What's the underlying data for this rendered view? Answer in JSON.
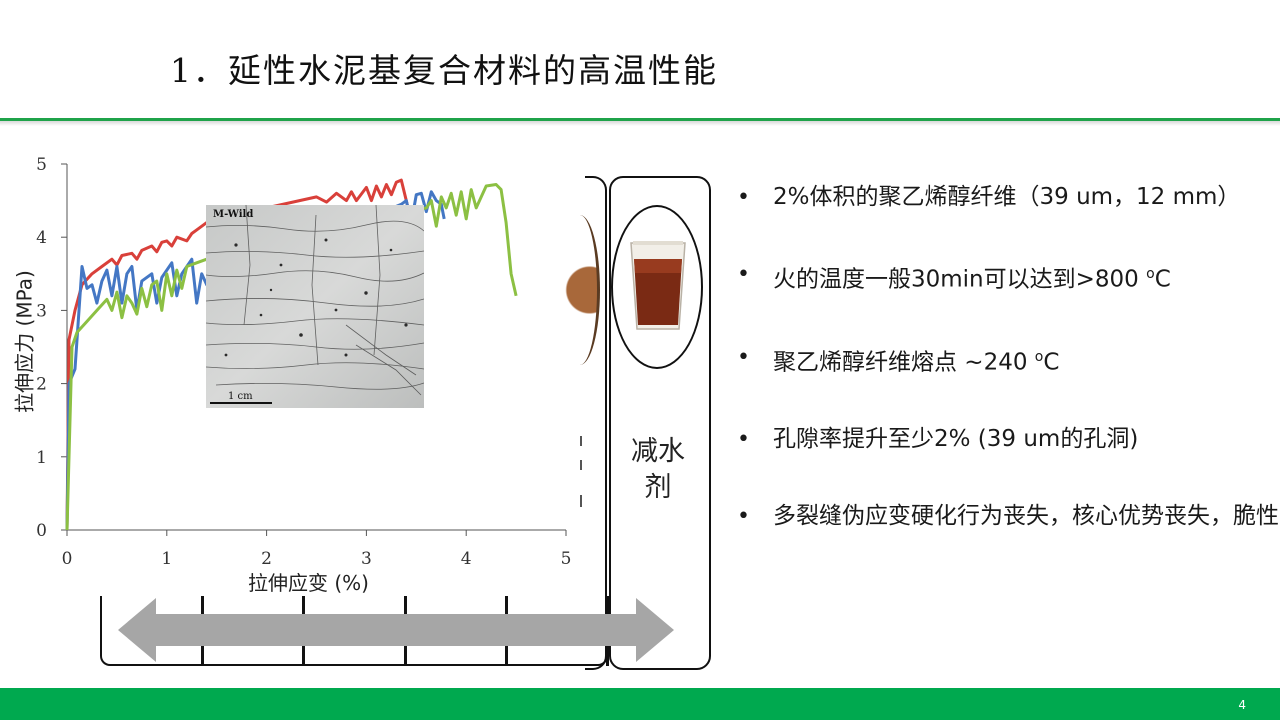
{
  "slide": {
    "title": "1．延性水泥基复合材料的高温性能",
    "page_number": "4",
    "accent_color": "#1fa34a",
    "footer_color": "#00a94f"
  },
  "micrograph": {
    "label": "M-Wild",
    "scale_text": "1 cm"
  },
  "additive_box": {
    "label_line1": "减水",
    "label_line2": "剂",
    "icon": "beaker-icon"
  },
  "bullets": [
    {
      "text": "2%体积的聚乙烯醇纤维（39 um，12 mm）"
    },
    {
      "text_pre": "火的温度一般30min可以达到>800 ",
      "sup": "o",
      "text_post": "C"
    },
    {
      "text_pre": "聚乙烯醇纤维熔点    ~240 ",
      "sup": "o",
      "text_post": "C"
    },
    {
      "text": "孔隙率提升至少2% (39 um的孔洞)"
    },
    {
      "text": "多裂缝伪应变硬化行为丧失，核心优势丧失，脆性"
    }
  ],
  "chart_data": {
    "type": "line",
    "xlabel": "拉伸应变 (%)",
    "ylabel": "拉伸应力 (MPa)",
    "xlim": [
      0,
      5
    ],
    "ylim": [
      0,
      5
    ],
    "xticks": [
      "0",
      "1",
      "2",
      "3",
      "4",
      "5"
    ],
    "yticks": [
      "0",
      "1",
      "2",
      "3",
      "4",
      "5"
    ],
    "grid": false,
    "series": [
      {
        "color": "#d9403a",
        "points": [
          [
            0,
            0
          ],
          [
            0.02,
            2.6
          ],
          [
            0.08,
            3.0
          ],
          [
            0.15,
            3.35
          ],
          [
            0.25,
            3.5
          ],
          [
            0.35,
            3.6
          ],
          [
            0.45,
            3.7
          ],
          [
            0.5,
            3.62
          ],
          [
            0.55,
            3.75
          ],
          [
            0.65,
            3.78
          ],
          [
            0.7,
            3.7
          ],
          [
            0.75,
            3.82
          ],
          [
            0.85,
            3.88
          ],
          [
            0.9,
            3.8
          ],
          [
            0.95,
            3.93
          ],
          [
            1.0,
            3.95
          ],
          [
            1.05,
            3.88
          ],
          [
            1.1,
            4.0
          ],
          [
            1.2,
            3.95
          ],
          [
            1.25,
            4.05
          ],
          [
            1.3,
            4.1
          ],
          [
            1.4,
            4.2
          ],
          [
            1.45,
            4.15
          ],
          [
            1.5,
            4.25
          ],
          [
            2.5,
            4.55
          ],
          [
            2.6,
            4.48
          ],
          [
            2.7,
            4.6
          ],
          [
            2.8,
            4.5
          ],
          [
            2.85,
            4.62
          ],
          [
            2.9,
            4.5
          ],
          [
            3.0,
            4.68
          ],
          [
            3.05,
            4.5
          ],
          [
            3.1,
            4.7
          ],
          [
            3.15,
            4.55
          ],
          [
            3.2,
            4.72
          ],
          [
            3.25,
            4.58
          ],
          [
            3.3,
            4.75
          ],
          [
            3.35,
            4.78
          ],
          [
            3.4,
            4.5
          ],
          [
            3.45,
            4.2
          ]
        ]
      },
      {
        "color": "#4477c4",
        "points": [
          [
            0,
            0
          ],
          [
            0.02,
            2.0
          ],
          [
            0.08,
            2.2
          ],
          [
            0.15,
            3.6
          ],
          [
            0.2,
            3.3
          ],
          [
            0.25,
            3.35
          ],
          [
            0.3,
            3.1
          ],
          [
            0.35,
            3.4
          ],
          [
            0.4,
            3.55
          ],
          [
            0.45,
            3.2
          ],
          [
            0.5,
            3.6
          ],
          [
            0.55,
            3.1
          ],
          [
            0.6,
            3.5
          ],
          [
            0.65,
            3.6
          ],
          [
            0.7,
            3.0
          ],
          [
            0.75,
            3.4
          ],
          [
            0.85,
            3.5
          ],
          [
            0.9,
            3.1
          ],
          [
            0.95,
            3.45
          ],
          [
            1.05,
            3.65
          ],
          [
            1.1,
            3.2
          ],
          [
            1.15,
            3.5
          ],
          [
            1.25,
            3.7
          ],
          [
            1.3,
            3.1
          ],
          [
            1.35,
            3.5
          ],
          [
            1.4,
            3.35
          ],
          [
            3.35,
            4.45
          ],
          [
            3.4,
            4.5
          ],
          [
            3.45,
            4.2
          ],
          [
            3.5,
            4.58
          ],
          [
            3.55,
            4.6
          ],
          [
            3.6,
            4.35
          ],
          [
            3.65,
            4.62
          ],
          [
            3.7,
            4.5
          ],
          [
            3.75,
            4.45
          ],
          [
            3.78,
            4.25
          ]
        ]
      },
      {
        "color": "#8cc043",
        "points": [
          [
            0,
            0
          ],
          [
            0.05,
            2.5
          ],
          [
            0.1,
            2.7
          ],
          [
            0.2,
            2.85
          ],
          [
            0.3,
            3.0
          ],
          [
            0.4,
            3.15
          ],
          [
            0.45,
            3.0
          ],
          [
            0.5,
            3.25
          ],
          [
            0.55,
            2.9
          ],
          [
            0.6,
            3.2
          ],
          [
            0.65,
            3.1
          ],
          [
            0.7,
            2.95
          ],
          [
            0.75,
            3.3
          ],
          [
            0.8,
            3.05
          ],
          [
            0.85,
            3.35
          ],
          [
            0.9,
            3.4
          ],
          [
            0.95,
            3.0
          ],
          [
            1.0,
            3.5
          ],
          [
            1.05,
            3.2
          ],
          [
            1.1,
            3.55
          ],
          [
            1.15,
            3.3
          ],
          [
            1.2,
            3.6
          ],
          [
            1.3,
            3.65
          ],
          [
            1.4,
            3.7
          ],
          [
            3.6,
            4.4
          ],
          [
            3.65,
            4.5
          ],
          [
            3.7,
            4.15
          ],
          [
            3.75,
            4.55
          ],
          [
            3.8,
            4.4
          ],
          [
            3.85,
            4.6
          ],
          [
            3.9,
            4.3
          ],
          [
            3.95,
            4.62
          ],
          [
            4.0,
            4.25
          ],
          [
            4.05,
            4.65
          ],
          [
            4.1,
            4.4
          ],
          [
            4.2,
            4.7
          ],
          [
            4.3,
            4.72
          ],
          [
            4.35,
            4.65
          ],
          [
            4.4,
            4.2
          ],
          [
            4.45,
            3.5
          ],
          [
            4.5,
            3.2
          ]
        ]
      }
    ]
  }
}
